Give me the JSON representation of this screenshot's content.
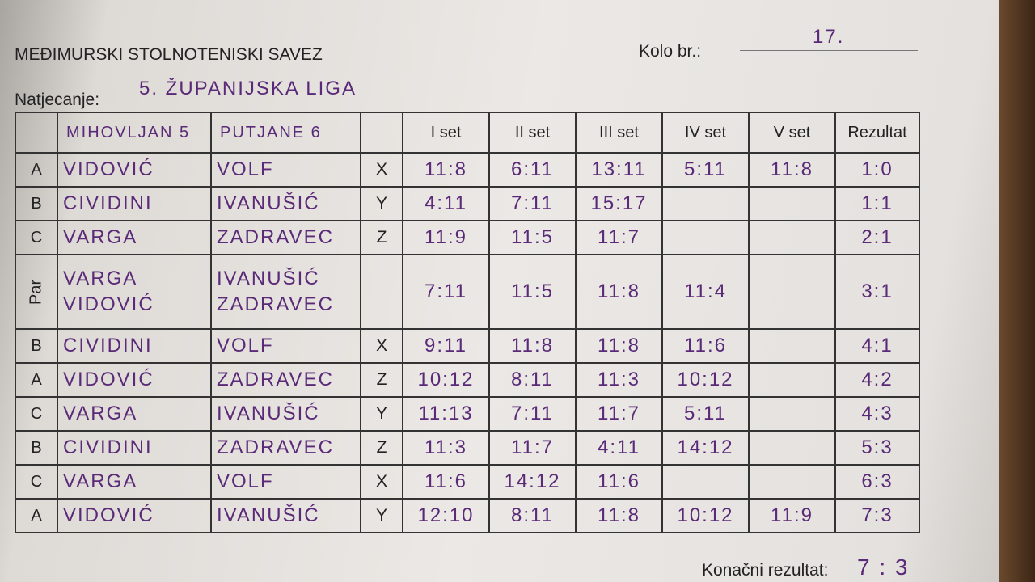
{
  "header": {
    "organization": "MEĐIMURSKI STOLNOTENISKI SAVEZ",
    "round_label": "Kolo br.:",
    "round": "17.",
    "competition_label": "Natjecanje:",
    "competition": "5. ŽUPANIJSKA LIGA"
  },
  "table": {
    "home_team": "MIHOVLJAN 5",
    "away_team": "PUTJANE 6",
    "set_headers": [
      "I set",
      "II set",
      "III set",
      "IV set",
      "V set"
    ],
    "result_header": "Rezultat",
    "rows": [
      {
        "slot": "A",
        "home": [
          "VIDOVIĆ"
        ],
        "away": [
          "VOLF"
        ],
        "code": "X",
        "sets": [
          "11:8",
          "6:11",
          "13:11",
          "5:11",
          "11:8"
        ],
        "result": "1:0"
      },
      {
        "slot": "B",
        "home": [
          "CIVIDINI"
        ],
        "away": [
          "IVANUŠIĆ"
        ],
        "code": "Y",
        "sets": [
          "4:11",
          "7:11",
          "15:17"
        ],
        "result": "1:1"
      },
      {
        "slot": "C",
        "home": [
          "VARGA"
        ],
        "away": [
          "ZADRAVEC"
        ],
        "code": "Z",
        "sets": [
          "11:9",
          "11:5",
          "11:7"
        ],
        "result": "2:1"
      },
      {
        "slot": "Par",
        "home": [
          "VARGA",
          "VIDOVIĆ"
        ],
        "away": [
          "IVANUŠIĆ",
          "ZADRAVEC"
        ],
        "sets": [
          "7:11",
          "11:5",
          "11:8",
          "11:4"
        ],
        "result": "3:1"
      },
      {
        "slot": "B",
        "home": [
          "CIVIDINI"
        ],
        "away": [
          "VOLF"
        ],
        "code": "X",
        "sets": [
          "9:11",
          "11:8",
          "11:8",
          "11:6"
        ],
        "result": "4:1"
      },
      {
        "slot": "A",
        "home": [
          "VIDOVIĆ"
        ],
        "away": [
          "ZADRAVEC"
        ],
        "code": "Z",
        "sets": [
          "10:12",
          "8:11",
          "11:3",
          "10:12"
        ],
        "result": "4:2"
      },
      {
        "slot": "C",
        "home": [
          "VARGA"
        ],
        "away": [
          "IVANUŠIĆ"
        ],
        "code": "Y",
        "sets": [
          "11:13",
          "7:11",
          "11:7",
          "5:11"
        ],
        "result": "4:3"
      },
      {
        "slot": "B",
        "home": [
          "CIVIDINI"
        ],
        "away": [
          "ZADRAVEC"
        ],
        "code": "Z",
        "sets": [
          "11:3",
          "11:7",
          "4:11",
          "14:12"
        ],
        "result": "5:3"
      },
      {
        "slot": "C",
        "home": [
          "VARGA"
        ],
        "away": [
          "VOLF"
        ],
        "code": "X",
        "sets": [
          "11:6",
          "14:12",
          "11:6"
        ],
        "result": "6:3"
      },
      {
        "slot": "A",
        "home": [
          "VIDOVIĆ"
        ],
        "away": [
          "IVANUŠIĆ"
        ],
        "code": "Y",
        "sets": [
          "12:10",
          "8:11",
          "11:8",
          "10:12",
          "11:9"
        ],
        "result": "7:3"
      }
    ],
    "final_label": "Konačni rezultat:",
    "final": "7 : 3"
  }
}
